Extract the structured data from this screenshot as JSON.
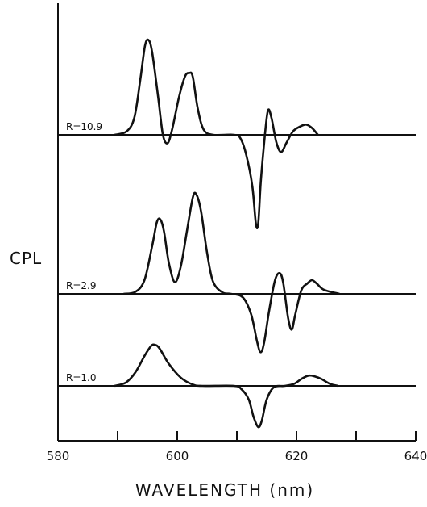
{
  "chart_data": {
    "type": "line",
    "title": "",
    "xlabel": "WAVELENGTH (nm)",
    "ylabel": "CPL",
    "xlim": [
      580,
      640
    ],
    "x_ticks": [
      580,
      590,
      600,
      610,
      620,
      630,
      640
    ],
    "x_tick_labels": [
      "580",
      "",
      "600",
      "",
      "620",
      "",
      "640"
    ],
    "grid": false,
    "legend": "none",
    "line_color": "#111111",
    "series": [
      {
        "name": "R=10.9",
        "baseline_offset": 2,
        "points": [
          [
            589.5,
            0.0
          ],
          [
            591.5,
            0.05
          ],
          [
            592.8,
            0.25
          ],
          [
            593.8,
            0.8
          ],
          [
            594.6,
            1.3
          ],
          [
            595.2,
            1.38
          ],
          [
            595.8,
            1.2
          ],
          [
            596.8,
            0.55
          ],
          [
            597.6,
            0.0
          ],
          [
            598.4,
            -0.12
          ],
          [
            599.2,
            0.1
          ],
          [
            600.3,
            0.55
          ],
          [
            601.3,
            0.85
          ],
          [
            602.0,
            0.9
          ],
          [
            602.6,
            0.85
          ],
          [
            603.4,
            0.4
          ],
          [
            604.4,
            0.08
          ],
          [
            606.0,
            0.0
          ],
          [
            609.5,
            0.0
          ],
          [
            610.6,
            -0.05
          ],
          [
            611.6,
            -0.3
          ],
          [
            612.6,
            -0.75
          ],
          [
            613.2,
            -1.3
          ],
          [
            613.6,
            -1.28
          ],
          [
            614.0,
            -0.7
          ],
          [
            614.6,
            -0.1
          ],
          [
            615.2,
            0.35
          ],
          [
            615.8,
            0.25
          ],
          [
            616.6,
            -0.1
          ],
          [
            617.4,
            -0.25
          ],
          [
            618.3,
            -0.12
          ],
          [
            619.4,
            0.05
          ],
          [
            620.6,
            0.12
          ],
          [
            621.6,
            0.15
          ],
          [
            622.6,
            0.1
          ],
          [
            623.6,
            0.0
          ]
        ]
      },
      {
        "name": "R=2.9",
        "baseline_offset": 1,
        "points": [
          [
            591.0,
            0.0
          ],
          [
            593.0,
            0.03
          ],
          [
            594.5,
            0.2
          ],
          [
            595.8,
            0.7
          ],
          [
            596.6,
            1.05
          ],
          [
            597.2,
            1.08
          ],
          [
            597.8,
            0.9
          ],
          [
            598.6,
            0.45
          ],
          [
            599.6,
            0.17
          ],
          [
            600.6,
            0.4
          ],
          [
            601.6,
            0.9
          ],
          [
            602.6,
            1.4
          ],
          [
            603.2,
            1.45
          ],
          [
            604.0,
            1.2
          ],
          [
            605.0,
            0.6
          ],
          [
            606.0,
            0.18
          ],
          [
            607.6,
            0.02
          ],
          [
            609.0,
            0.0
          ],
          [
            611.0,
            -0.05
          ],
          [
            612.4,
            -0.3
          ],
          [
            613.4,
            -0.7
          ],
          [
            614.0,
            -0.85
          ],
          [
            614.6,
            -0.7
          ],
          [
            615.4,
            -0.25
          ],
          [
            616.4,
            0.2
          ],
          [
            617.2,
            0.3
          ],
          [
            617.8,
            0.15
          ],
          [
            618.6,
            -0.35
          ],
          [
            619.2,
            -0.52
          ],
          [
            619.8,
            -0.3
          ],
          [
            620.8,
            0.05
          ],
          [
            621.8,
            0.15
          ],
          [
            622.6,
            0.2
          ],
          [
            623.4,
            0.15
          ],
          [
            624.6,
            0.06
          ],
          [
            627.2,
            0.0
          ]
        ]
      },
      {
        "name": "R=1.0",
        "baseline_offset": 0,
        "points": [
          [
            589.5,
            0.0
          ],
          [
            591.4,
            0.05
          ],
          [
            593.0,
            0.2
          ],
          [
            594.6,
            0.45
          ],
          [
            595.6,
            0.58
          ],
          [
            596.2,
            0.6
          ],
          [
            597.0,
            0.55
          ],
          [
            598.6,
            0.32
          ],
          [
            600.6,
            0.12
          ],
          [
            602.6,
            0.02
          ],
          [
            604.2,
            0.0
          ],
          [
            609.5,
            0.0
          ],
          [
            610.8,
            -0.05
          ],
          [
            612.0,
            -0.2
          ],
          [
            612.8,
            -0.45
          ],
          [
            613.6,
            -0.6
          ],
          [
            614.2,
            -0.5
          ],
          [
            615.0,
            -0.2
          ],
          [
            616.2,
            -0.02
          ],
          [
            618.0,
            0.0
          ],
          [
            619.6,
            0.03
          ],
          [
            620.8,
            0.1
          ],
          [
            622.0,
            0.15
          ],
          [
            623.0,
            0.14
          ],
          [
            624.2,
            0.1
          ],
          [
            625.6,
            0.03
          ],
          [
            627.0,
            0.0
          ]
        ]
      }
    ]
  }
}
